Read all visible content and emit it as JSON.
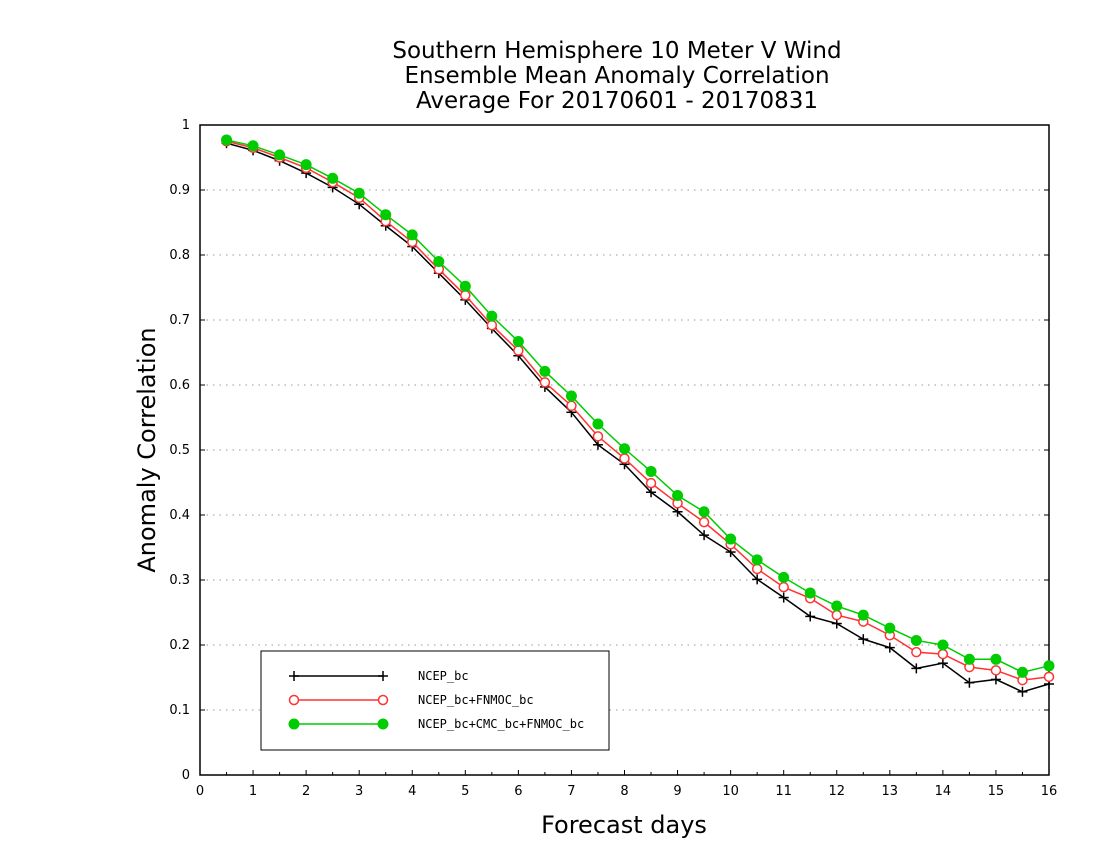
{
  "chart_data": {
    "type": "line",
    "title": [
      "Southern Hemisphere 10 Meter V Wind",
      "Ensemble Mean Anomaly Correlation",
      "Average For 20170601 - 20170831"
    ],
    "xlabel": "Forecast days",
    "ylabel": "Anomaly Correlation",
    "xlim": [
      0,
      16
    ],
    "ylim": [
      0,
      1
    ],
    "xticks": [
      0,
      1,
      2,
      3,
      4,
      5,
      6,
      7,
      8,
      9,
      10,
      11,
      12,
      13,
      14,
      15,
      16
    ],
    "yticks": [
      0,
      0.1,
      0.2,
      0.3,
      0.4,
      0.5,
      0.6,
      0.7,
      0.8,
      0.9,
      1
    ],
    "grid": "horizontal dotted",
    "legend_position": "bottom-left",
    "x": [
      0.5,
      1,
      1.5,
      2,
      2.5,
      3,
      3.5,
      4,
      4.5,
      5,
      5.5,
      6,
      6.5,
      7,
      7.5,
      8,
      8.5,
      9,
      9.5,
      10,
      10.5,
      11,
      11.5,
      12,
      12.5,
      13,
      13.5,
      14,
      14.5,
      15,
      15.5,
      16
    ],
    "series": [
      {
        "name": "NCEP_bc",
        "color": "#000000",
        "marker": "plus",
        "values": [
          0.972,
          0.961,
          0.945,
          0.926,
          0.904,
          0.878,
          0.845,
          0.813,
          0.772,
          0.731,
          0.687,
          0.645,
          0.597,
          0.558,
          0.508,
          0.478,
          0.435,
          0.405,
          0.369,
          0.343,
          0.301,
          0.273,
          0.244,
          0.233,
          0.209,
          0.196,
          0.164,
          0.172,
          0.142,
          0.147,
          0.128,
          0.14
        ]
      },
      {
        "name": "NCEP_bc+FNMOC_bc",
        "color": "#ff3333",
        "marker": "open-circle",
        "values": [
          0.975,
          0.965,
          0.95,
          0.934,
          0.912,
          0.888,
          0.852,
          0.82,
          0.778,
          0.738,
          0.692,
          0.653,
          0.604,
          0.568,
          0.521,
          0.487,
          0.449,
          0.418,
          0.389,
          0.355,
          0.317,
          0.289,
          0.272,
          0.246,
          0.236,
          0.215,
          0.189,
          0.186,
          0.166,
          0.161,
          0.146,
          0.151
        ]
      },
      {
        "name": "NCEP_bc+CMC_bc+FNMOC_bc",
        "color": "#00cc00",
        "marker": "filled-circle",
        "values": [
          0.977,
          0.968,
          0.954,
          0.939,
          0.918,
          0.895,
          0.862,
          0.831,
          0.79,
          0.752,
          0.706,
          0.667,
          0.621,
          0.583,
          0.54,
          0.502,
          0.467,
          0.43,
          0.405,
          0.363,
          0.331,
          0.304,
          0.28,
          0.26,
          0.246,
          0.226,
          0.207,
          0.2,
          0.178,
          0.178,
          0.158,
          0.168
        ]
      }
    ]
  }
}
